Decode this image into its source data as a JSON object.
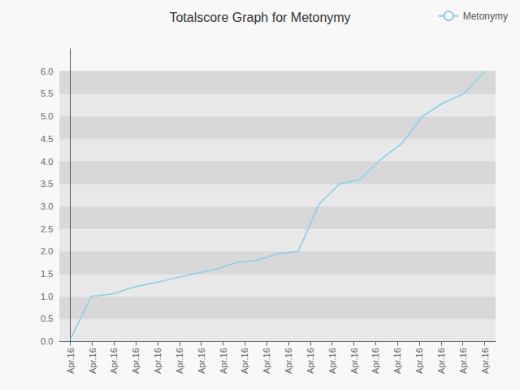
{
  "chart_data": {
    "type": "line",
    "title": "Totalscore Graph for Metonymy",
    "x": [
      0,
      0.95,
      1.9,
      2.85,
      3.8,
      4.75,
      5.7,
      6.65,
      7.6,
      8.55,
      9.5,
      10.45,
      11.4,
      12.35,
      13.3,
      14.25,
      15.2,
      16.15,
      17.1,
      18.05,
      19
    ],
    "series": [
      {
        "name": "Metonymy",
        "color": "#87CEEB",
        "values": [
          0.05,
          1.0,
          1.05,
          1.2,
          1.3,
          1.4,
          1.5,
          1.6,
          1.75,
          1.8,
          1.95,
          2.0,
          3.05,
          3.5,
          3.6,
          4.05,
          4.4,
          5.0,
          5.3,
          5.5,
          6.0
        ]
      }
    ],
    "xlim": [
      -0.5,
      19.5
    ],
    "xticks": [
      {
        "value": 0,
        "label": "Apr.16"
      },
      {
        "value": 1,
        "label": "Apr.16"
      },
      {
        "value": 2,
        "label": "Apr.16"
      },
      {
        "value": 3,
        "label": "Apr.16"
      },
      {
        "value": 4,
        "label": "Apr.16"
      },
      {
        "value": 5,
        "label": "Apr.16"
      },
      {
        "value": 6,
        "label": "Apr.16"
      },
      {
        "value": 7,
        "label": "Apr.16"
      },
      {
        "value": 8,
        "label": "Apr.16"
      },
      {
        "value": 9,
        "label": "Apr.16"
      },
      {
        "value": 10,
        "label": "Apr.16"
      },
      {
        "value": 11,
        "label": "Apr.16"
      },
      {
        "value": 12,
        "label": "Apr.16"
      },
      {
        "value": 13,
        "label": "Apr.16"
      },
      {
        "value": 14,
        "label": "Apr.16"
      },
      {
        "value": 15,
        "label": "Apr.16"
      },
      {
        "value": 16,
        "label": "Apr.16"
      },
      {
        "value": 17,
        "label": "Apr.16"
      },
      {
        "value": 18,
        "label": "Apr.16"
      },
      {
        "value": 19,
        "label": "Apr.16"
      }
    ],
    "ylim": [
      0.0,
      6.5
    ],
    "yticks": [
      {
        "value": 0.0,
        "label": "0.0"
      },
      0.5,
      {
        "value": 1.0,
        "label": "1.0"
      },
      1.5,
      {
        "value": 2.0,
        "label": "2.0"
      },
      2.5,
      {
        "value": 3.0,
        "label": "3.0"
      },
      3.5,
      {
        "value": 4.0,
        "label": "4.0"
      },
      4.5,
      {
        "value": 5.0,
        "label": "5.0"
      },
      5.5,
      {
        "value": 6.0,
        "label": "6.0"
      }
    ],
    "grid": true,
    "legend": "upper right"
  }
}
